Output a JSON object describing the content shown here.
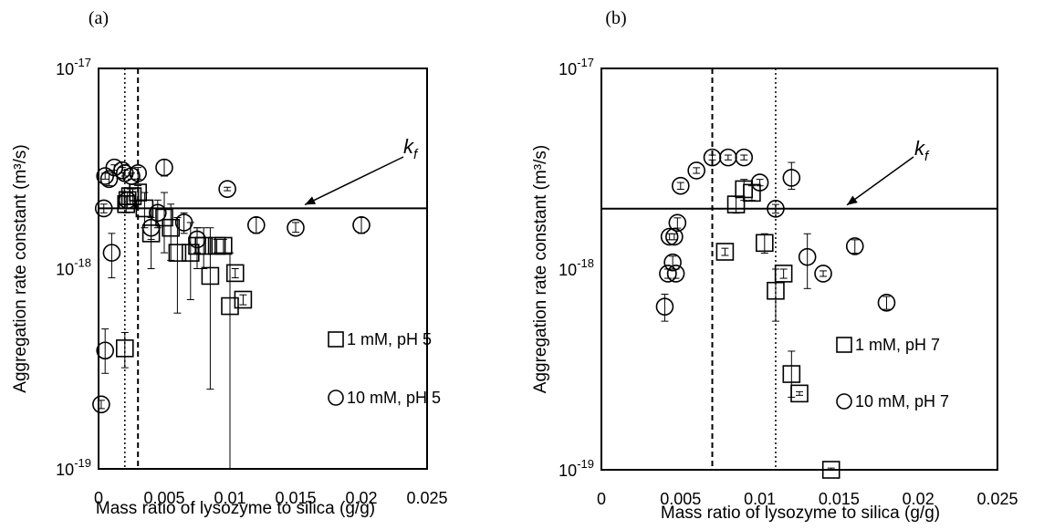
{
  "figure": {
    "colors": {
      "ink": "#000000",
      "background": "#ffffff"
    }
  },
  "chart_data": [
    {
      "panel_label": "(a)",
      "type": "scatter",
      "ylabel": "Aggregation rate constant (m³/s)",
      "xlabel": "Mass ratio of lysozyme to silica (g/g)",
      "xlim": [
        0,
        0.025
      ],
      "ylim": [
        1e-19,
        1e-17
      ],
      "y_scale": "log",
      "grid": false,
      "x_ticks": [
        "0",
        "0.005",
        "0.01",
        "0.015",
        "0.02",
        "0.025"
      ],
      "y_ticks": [
        {
          "value": 1e-17,
          "base": "10",
          "exp": "-17"
        },
        {
          "value": 1e-18,
          "base": "10",
          "exp": "-18"
        },
        {
          "value": 1e-19,
          "base": "10",
          "exp": "-19"
        }
      ],
      "hline": {
        "y": 2e-18
      },
      "vlines": [
        {
          "x": 0.002,
          "style": "dotted"
        },
        {
          "x": 0.003,
          "style": "dashed"
        }
      ],
      "annotation": {
        "text": "k",
        "subscript": "f",
        "arrow_target": {
          "x": 0.0157,
          "y": 2e-18
        }
      },
      "legend_position": "bottom-right",
      "series": [
        {
          "name": "1 mM, pH 5",
          "marker": "square",
          "points": [
            {
              "x": 0.002,
              "y": 4e-19,
              "lo": 3.2e-19,
              "hi": 4.8e-19
            },
            {
              "x": 0.0021,
              "y": 2.1e-18,
              "lo": 1.9e-18,
              "hi": 2.3e-18
            },
            {
              "x": 0.0022,
              "y": 2.2e-18,
              "lo": 2e-18,
              "hi": 2.4e-18
            },
            {
              "x": 0.0024,
              "y": 2.3e-18,
              "lo": 2.1e-18,
              "hi": 2.5e-18
            },
            {
              "x": 0.0026,
              "y": 2.3e-18,
              "lo": 2.1e-18,
              "hi": 2.5e-18
            },
            {
              "x": 0.003,
              "y": 2.4e-18,
              "lo": 2.2e-18,
              "hi": 2.6e-18
            },
            {
              "x": 0.0035,
              "y": 2e-18,
              "lo": 1.6e-18,
              "hi": 2.4e-18
            },
            {
              "x": 0.004,
              "y": 1.5e-18,
              "lo": 1e-18,
              "hi": 2e-18
            },
            {
              "x": 0.005,
              "y": 1.8e-18,
              "lo": 1.2e-18,
              "hi": 2.4e-18
            },
            {
              "x": 0.0055,
              "y": 1.6e-18,
              "lo": 1.1e-18,
              "hi": 2.1e-18
            },
            {
              "x": 0.006,
              "y": 1.2e-18,
              "lo": 6e-19,
              "hi": 1.8e-18
            },
            {
              "x": 0.007,
              "y": 1.2e-18,
              "lo": 7e-19,
              "hi": 1.7e-18
            },
            {
              "x": 0.0075,
              "y": 1.3e-18,
              "lo": 1e-18,
              "hi": 1.6e-18
            },
            {
              "x": 0.008,
              "y": 1.3e-18,
              "lo": 1e-18,
              "hi": 1.6e-18
            },
            {
              "x": 0.0085,
              "y": 9.2e-19,
              "lo": 2.5e-19,
              "hi": 1.6e-18
            },
            {
              "x": 0.009,
              "y": 1.3e-18,
              "lo": 1.2e-18,
              "hi": 1.4e-18
            },
            {
              "x": 0.0095,
              "y": 1.3e-18,
              "lo": 1.2e-18,
              "hi": 1.4e-18
            },
            {
              "x": 0.01,
              "y": 6.5e-19,
              "lo": 1e-19,
              "hi": 1.2e-18
            },
            {
              "x": 0.0104,
              "y": 9.5e-19,
              "lo": 9e-19,
              "hi": 1e-18
            },
            {
              "x": 0.011,
              "y": 7e-19,
              "lo": 6.6e-19,
              "hi": 7.4e-19
            }
          ]
        },
        {
          "name": "10 mM, pH 5",
          "marker": "circle",
          "points": [
            {
              "x": 0.0002,
              "y": 2.1e-19,
              "lo": 2e-19,
              "hi": 2.2e-19
            },
            {
              "x": 0.0004,
              "y": 2e-18,
              "lo": 1.9e-18,
              "hi": 2.1e-18
            },
            {
              "x": 0.0005,
              "y": 3.9e-19,
              "lo": 3e-19,
              "hi": 5e-19
            },
            {
              "x": 0.0005,
              "y": 2.9e-18,
              "lo": 2.8e-18,
              "hi": 3e-18
            },
            {
              "x": 0.0008,
              "y": 2.8e-18,
              "lo": 2.6e-18,
              "hi": 3e-18
            },
            {
              "x": 0.001,
              "y": 1.2e-18,
              "lo": 9e-19,
              "hi": 1.5e-18
            },
            {
              "x": 0.0012,
              "y": 3.2e-18,
              "lo": 3.1e-18,
              "hi": 3.3e-18
            },
            {
              "x": 0.0018,
              "y": 3.1e-18,
              "lo": 3e-18,
              "hi": 3.2e-18
            },
            {
              "x": 0.002,
              "y": 3e-18,
              "lo": 2.9e-18,
              "hi": 3.1e-18
            },
            {
              "x": 0.0022,
              "y": 2.2e-18,
              "lo": 2.1e-18,
              "hi": 2.3e-18
            },
            {
              "x": 0.0025,
              "y": 2.9e-18,
              "lo": 2.8e-18,
              "hi": 3e-18
            },
            {
              "x": 0.003,
              "y": 3e-18,
              "lo": 2.8e-18,
              "hi": 3.2e-18
            },
            {
              "x": 0.004,
              "y": 1.6e-18,
              "lo": 1.4e-18,
              "hi": 1.8e-18
            },
            {
              "x": 0.0045,
              "y": 1.9e-18,
              "lo": 1.6e-18,
              "hi": 2.2e-18
            },
            {
              "x": 0.005,
              "y": 3.2e-18,
              "lo": 2.9e-18,
              "hi": 3.5e-18
            },
            {
              "x": 0.0065,
              "y": 1.7e-18,
              "lo": 1.5e-18,
              "hi": 1.9e-18
            },
            {
              "x": 0.0075,
              "y": 1.4e-18,
              "lo": 1.2e-18,
              "hi": 1.6e-18
            },
            {
              "x": 0.0098,
              "y": 2.5e-18,
              "lo": 2.45e-18,
              "hi": 2.55e-18
            },
            {
              "x": 0.012,
              "y": 1.65e-18,
              "lo": 1.5e-18,
              "hi": 1.8e-18
            },
            {
              "x": 0.015,
              "y": 1.6e-18,
              "lo": 1.52e-18,
              "hi": 1.7e-18
            },
            {
              "x": 0.02,
              "y": 1.65e-18,
              "lo": 1.5e-18,
              "hi": 1.8e-18
            }
          ]
        }
      ]
    },
    {
      "panel_label": "(b)",
      "type": "scatter",
      "ylabel": "Aggregation rate constant (m³/s)",
      "xlabel": "Mass ratio of lysozyme to silica (g/g)",
      "xlim": [
        0,
        0.025
      ],
      "ylim": [
        1e-19,
        1e-17
      ],
      "y_scale": "log",
      "grid": false,
      "x_ticks": [
        "0",
        "0.005",
        "0.01",
        "0.015",
        "0.02",
        "0.025"
      ],
      "y_ticks": [
        {
          "value": 1e-17,
          "base": "10",
          "exp": "-17"
        },
        {
          "value": 1e-18,
          "base": "10",
          "exp": "-18"
        },
        {
          "value": 1e-19,
          "base": "10",
          "exp": "-19"
        }
      ],
      "hline": {
        "y": 2e-18
      },
      "vlines": [
        {
          "x": 0.007,
          "style": "dashed"
        },
        {
          "x": 0.011,
          "style": "dotted"
        }
      ],
      "annotation": {
        "text": "k",
        "subscript": "f",
        "arrow_target": {
          "x": 0.0155,
          "y": 2e-18
        }
      },
      "legend_position": "bottom-right",
      "series": [
        {
          "name": "1 mM, pH 7",
          "marker": "square",
          "points": [
            {
              "x": 0.0078,
              "y": 1.22e-18,
              "lo": 1.17e-18,
              "hi": 1.27e-18
            },
            {
              "x": 0.0085,
              "y": 2.1e-18,
              "lo": 1.9e-18,
              "hi": 2.3e-18
            },
            {
              "x": 0.009,
              "y": 2.5e-18,
              "lo": 2.2e-18,
              "hi": 2.8e-18
            },
            {
              "x": 0.0095,
              "y": 2.4e-18,
              "lo": 2.2e-18,
              "hi": 2.6e-18
            },
            {
              "x": 0.0103,
              "y": 1.35e-18,
              "lo": 1.2e-18,
              "hi": 1.5e-18
            },
            {
              "x": 0.011,
              "y": 7.8e-19,
              "lo": 5.5e-19,
              "hi": 1e-18
            },
            {
              "x": 0.0115,
              "y": 9.5e-19,
              "lo": 9e-19,
              "hi": 1e-18
            },
            {
              "x": 0.012,
              "y": 3e-19,
              "lo": 2.3e-19,
              "hi": 3.9e-19
            },
            {
              "x": 0.0125,
              "y": 2.4e-19,
              "lo": 2.35e-19,
              "hi": 2.45e-19
            },
            {
              "x": 0.0145,
              "y": 1e-19,
              "lo": 9.8e-20,
              "hi": 1.02e-19
            }
          ]
        },
        {
          "name": "10 mM, pH 7",
          "marker": "circle",
          "points": [
            {
              "x": 0.004,
              "y": 6.5e-19,
              "lo": 5.5e-19,
              "hi": 7.5e-19
            },
            {
              "x": 0.0042,
              "y": 9.5e-19,
              "lo": 9e-19,
              "hi": 1e-18
            },
            {
              "x": 0.0043,
              "y": 1.45e-18,
              "lo": 1.4e-18,
              "hi": 1.5e-18
            },
            {
              "x": 0.0045,
              "y": 1.08e-18,
              "lo": 1e-18,
              "hi": 1.16e-18
            },
            {
              "x": 0.0046,
              "y": 1.45e-18,
              "lo": 1.4e-18,
              "hi": 1.5e-18
            },
            {
              "x": 0.0047,
              "y": 9.5e-19,
              "lo": 9e-19,
              "hi": 1e-18
            },
            {
              "x": 0.0048,
              "y": 1.7e-18,
              "lo": 1.6e-18,
              "hi": 1.8e-18
            },
            {
              "x": 0.005,
              "y": 2.6e-18,
              "lo": 2.5e-18,
              "hi": 2.7e-18
            },
            {
              "x": 0.006,
              "y": 3.1e-18,
              "lo": 3e-18,
              "hi": 3.2e-18
            },
            {
              "x": 0.007,
              "y": 3.6e-18,
              "lo": 3.5e-18,
              "hi": 3.7e-18
            },
            {
              "x": 0.008,
              "y": 3.6e-18,
              "lo": 3.5e-18,
              "hi": 3.7e-18
            },
            {
              "x": 0.009,
              "y": 3.6e-18,
              "lo": 3.5e-18,
              "hi": 3.7e-18
            },
            {
              "x": 0.01,
              "y": 2.7e-18,
              "lo": 2.6e-18,
              "hi": 2.8e-18
            },
            {
              "x": 0.011,
              "y": 2e-18,
              "lo": 1.9e-18,
              "hi": 2.1e-18
            },
            {
              "x": 0.012,
              "y": 2.85e-18,
              "lo": 2.5e-18,
              "hi": 3.4e-18
            },
            {
              "x": 0.013,
              "y": 1.15e-18,
              "lo": 8e-19,
              "hi": 1.5e-18
            },
            {
              "x": 0.014,
              "y": 9.5e-19,
              "lo": 9.2e-19,
              "hi": 9.8e-19
            },
            {
              "x": 0.016,
              "y": 1.3e-18,
              "lo": 1.2e-18,
              "hi": 1.4e-18
            },
            {
              "x": 0.018,
              "y": 6.8e-19,
              "lo": 6.3e-19,
              "hi": 7.3e-19
            }
          ]
        }
      ]
    }
  ]
}
